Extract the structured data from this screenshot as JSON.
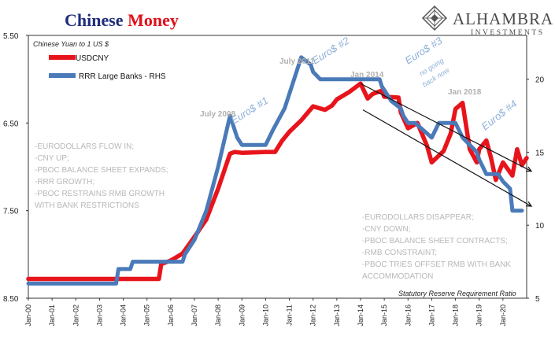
{
  "title": {
    "part1": "Chinese",
    "part2": "Money",
    "color1": "#1f2d7a",
    "color2": "#e0101a"
  },
  "logo": {
    "name": "ALHAMBRA",
    "sub": "INVESTMENTS"
  },
  "left_axis_title": "Chinese Yuan to 1 US $",
  "right_axis_title": "Statutory Reserve Requirement Ratio",
  "annotations": {
    "euro1": "Euro$ #1",
    "euro2": "Euro$ #2",
    "euro3": "Euro$ #3",
    "euro3_sub1": "no going",
    "euro3_sub2": "back now",
    "euro4": "Euro$ #4",
    "july2008": "July 2008",
    "july2011": "July 2011",
    "jan2014": "Jan 2014",
    "jan2018": "Jan 2018"
  },
  "notes_left": [
    "-EURODOLLARS FLOW IN;",
    "-CNY UP;",
    "-PBOC BALANCE SHEET EXPANDS;",
    "-RRR GROWTH;",
    "-PBOC RESTRAINS RMB GROWTH",
    "WITH BANK RESTRICTIONS"
  ],
  "notes_right": [
    "-EURODOLLARS DISAPPEAR;",
    "-CNY DOWN;",
    "-PBOC BALANCE SHEET CONTRACTS;",
    "-RMB CONSTRAINT;",
    "-PBOC TRIES OFFSET RMB WITH BANK",
    "ACCOMMODATION"
  ],
  "chart_data": {
    "type": "line",
    "title": "Chinese Money",
    "x_ticks": [
      "Jan-00",
      "Jan-01",
      "Jan-02",
      "Jan-03",
      "Jan-04",
      "Jan-05",
      "Jan-06",
      "Jan-07",
      "Jan-08",
      "Jan-09",
      "Jan-10",
      "Jan-11",
      "Jan-12",
      "Jan-13",
      "Jan-14",
      "Jan-15",
      "Jan-16",
      "Jan-17",
      "Jan-18",
      "Jan-19",
      "Jan-20"
    ],
    "y_left": {
      "ticks": [
        "5.50",
        "6.50",
        "7.50",
        "8.50"
      ],
      "ylim": [
        8.5,
        5.5
      ],
      "inverted": true
    },
    "y_right": {
      "ticks": [
        "5",
        "10",
        "15",
        "20"
      ],
      "ylim": [
        5,
        23
      ]
    },
    "series": [
      {
        "name": "USDCNY",
        "axis": "left",
        "color": "#e8141c",
        "points": [
          [
            2000.0,
            8.28
          ],
          [
            2005.5,
            8.28
          ],
          [
            2005.6,
            8.11
          ],
          [
            2006.0,
            8.07
          ],
          [
            2006.5,
            7.99
          ],
          [
            2007.0,
            7.8
          ],
          [
            2007.5,
            7.6
          ],
          [
            2008.0,
            7.25
          ],
          [
            2008.5,
            6.85
          ],
          [
            2008.7,
            6.83
          ],
          [
            2009.0,
            6.84
          ],
          [
            2010.0,
            6.83
          ],
          [
            2010.4,
            6.83
          ],
          [
            2010.7,
            6.7
          ],
          [
            2011.0,
            6.6
          ],
          [
            2011.5,
            6.47
          ],
          [
            2012.0,
            6.31
          ],
          [
            2012.5,
            6.35
          ],
          [
            2012.8,
            6.3
          ],
          [
            2013.0,
            6.23
          ],
          [
            2013.5,
            6.15
          ],
          [
            2014.0,
            6.05
          ],
          [
            2014.3,
            6.22
          ],
          [
            2014.5,
            6.17
          ],
          [
            2014.9,
            6.13
          ],
          [
            2015.0,
            6.2
          ],
          [
            2015.6,
            6.21
          ],
          [
            2015.7,
            6.38
          ],
          [
            2016.0,
            6.56
          ],
          [
            2016.4,
            6.5
          ],
          [
            2016.8,
            6.76
          ],
          [
            2017.0,
            6.95
          ],
          [
            2017.5,
            6.82
          ],
          [
            2017.8,
            6.62
          ],
          [
            2018.0,
            6.34
          ],
          [
            2018.3,
            6.27
          ],
          [
            2018.6,
            6.8
          ],
          [
            2018.9,
            6.95
          ],
          [
            2019.0,
            6.8
          ],
          [
            2019.3,
            6.7
          ],
          [
            2019.5,
            6.9
          ],
          [
            2019.7,
            7.15
          ],
          [
            2020.0,
            6.95
          ],
          [
            2020.4,
            7.1
          ],
          [
            2020.6,
            6.8
          ],
          [
            2020.8,
            6.98
          ],
          [
            2021.0,
            6.9
          ]
        ]
      },
      {
        "name": "RRR Large Banks - RHS",
        "axis": "right",
        "color": "#4a7ab8",
        "points": [
          [
            2000.0,
            6
          ],
          [
            2003.7,
            6
          ],
          [
            2003.8,
            7
          ],
          [
            2004.3,
            7
          ],
          [
            2004.4,
            7.5
          ],
          [
            2006.5,
            7.5
          ],
          [
            2006.6,
            8
          ],
          [
            2007.0,
            9
          ],
          [
            2007.5,
            11
          ],
          [
            2008.0,
            14
          ],
          [
            2008.5,
            17.5
          ],
          [
            2008.8,
            16
          ],
          [
            2009.0,
            15.5
          ],
          [
            2010.0,
            15.5
          ],
          [
            2010.3,
            16.5
          ],
          [
            2010.8,
            18
          ],
          [
            2011.0,
            19
          ],
          [
            2011.4,
            21
          ],
          [
            2011.5,
            21.5
          ],
          [
            2011.9,
            21
          ],
          [
            2012.0,
            20.5
          ],
          [
            2012.3,
            20
          ],
          [
            2014.8,
            20
          ],
          [
            2014.9,
            19.5
          ],
          [
            2015.3,
            18.5
          ],
          [
            2015.7,
            18
          ],
          [
            2015.8,
            17.5
          ],
          [
            2016.0,
            17
          ],
          [
            2016.3,
            17
          ],
          [
            2017.0,
            16
          ],
          [
            2017.3,
            17
          ],
          [
            2018.0,
            17
          ],
          [
            2018.3,
            16
          ],
          [
            2018.6,
            15.5
          ],
          [
            2018.9,
            15
          ],
          [
            2019.0,
            14.5
          ],
          [
            2019.3,
            13.5
          ],
          [
            2019.8,
            13.5
          ],
          [
            2020.0,
            13
          ],
          [
            2020.3,
            12.5
          ],
          [
            2020.4,
            11
          ],
          [
            2020.8,
            11
          ]
        ]
      }
    ],
    "trend_lines": [
      [
        [
          2014.0,
          6.05
        ],
        [
          2021.2,
          7.05
        ]
      ],
      [
        [
          2014.1,
          6.35
        ],
        [
          2021.2,
          7.45
        ]
      ]
    ]
  }
}
